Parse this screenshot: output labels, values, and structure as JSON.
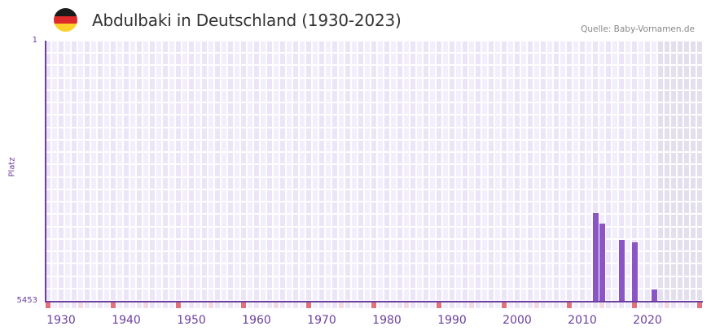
{
  "header": {
    "title": "Abdulbaki in Deutschland (1930-2023)",
    "source": "Quelle: Baby-Vornamen.de",
    "flag_colors": [
      "#1a1a1a",
      "#dd2a2a",
      "#fcd22a"
    ]
  },
  "colors": {
    "bar": "#8b55c6",
    "axis": "#6b3fa0",
    "grid_a": "#f2eefb",
    "grid_b": "#ebe5f7",
    "future_shade": "#e3dfed",
    "decade_marker": "#e4707a",
    "half_decade_marker": "#f5d9e1"
  },
  "chart_data": {
    "type": "bar",
    "title": "Abdulbaki in Deutschland (1930-2023)",
    "xlabel": "",
    "ylabel": "Platz",
    "y_inverted": true,
    "ylim": [
      1,
      5453
    ],
    "xlim": [
      1928,
      2028
    ],
    "y_ticks": [
      "1",
      "5453"
    ],
    "x_ticks": [
      "1930",
      "1940",
      "1950",
      "1960",
      "1970",
      "1980",
      "1990",
      "2000",
      "2010",
      "2020"
    ],
    "grid": true,
    "shaded_future_from": 2022,
    "categories": [
      "2012",
      "2013",
      "2016",
      "2018",
      "2021"
    ],
    "values": [
      3613,
      3834,
      4175,
      4226,
      5215
    ],
    "annotation": "Quelle: Baby-Vornamen.de"
  }
}
